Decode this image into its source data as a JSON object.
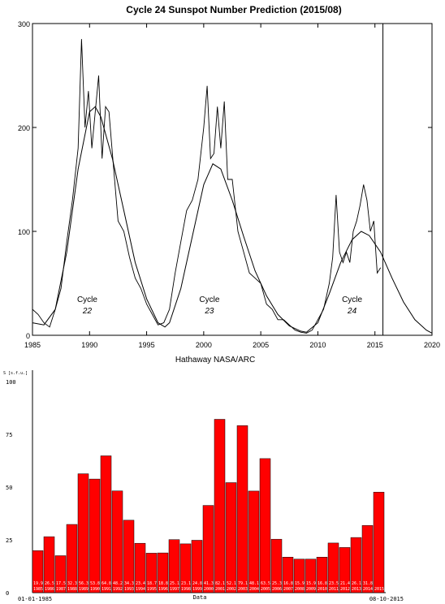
{
  "chart_data": [
    {
      "type": "line",
      "title": "Cycle 24 Sunspot Number Prediction (2015/08)",
      "credit": "Hathaway  NASA/ARC",
      "xlim": [
        1985,
        2020
      ],
      "ylim": [
        0,
        300
      ],
      "x_ticks": [
        "1985",
        "1990",
        "1995",
        "2000",
        "2005",
        "2010",
        "2015",
        "2020"
      ],
      "y_ticks": [
        "0",
        "100",
        "200",
        "300"
      ],
      "marker_year": 2015.7,
      "cycle_labels": [
        {
          "name": "Cycle",
          "number": "22",
          "x": 1989.8
        },
        {
          "name": "Cycle",
          "number": "23",
          "x": 2000.5
        },
        {
          "name": "Cycle",
          "number": "24",
          "x": 2013.0
        }
      ],
      "series": [
        {
          "role": "monthly-observed",
          "x": [
            1985.0,
            1985.5,
            1986.0,
            1986.5,
            1987.0,
            1987.5,
            1988.0,
            1988.5,
            1989.0,
            1989.3,
            1989.6,
            1989.9,
            1990.2,
            1990.5,
            1990.8,
            1991.1,
            1991.4,
            1991.7,
            1992.0,
            1992.5,
            1993.0,
            1993.5,
            1994.0,
            1994.5,
            1995.0,
            1995.5,
            1996.0,
            1996.5,
            1997.0,
            1997.5,
            1998.0,
            1998.5,
            1999.0,
            1999.5,
            2000.0,
            2000.3,
            2000.6,
            2000.9,
            2001.2,
            2001.5,
            2001.8,
            2002.1,
            2002.5,
            2003.0,
            2003.5,
            2004.0,
            2004.5,
            2005.0,
            2005.5,
            2006.0,
            2006.5,
            2007.0,
            2007.5,
            2008.0,
            2008.5,
            2009.0,
            2009.5,
            2010.0,
            2010.5,
            2011.0,
            2011.3,
            2011.6,
            2011.9,
            2012.2,
            2012.5,
            2012.8,
            2013.1,
            2013.4,
            2013.7,
            2014.0,
            2014.3,
            2014.6,
            2014.9,
            2015.2,
            2015.5
          ],
          "y": [
            25,
            20,
            12,
            8,
            25,
            45,
            90,
            130,
            180,
            285,
            200,
            235,
            180,
            215,
            250,
            170,
            220,
            215,
            175,
            110,
            100,
            75,
            55,
            45,
            30,
            20,
            10,
            12,
            25,
            60,
            90,
            120,
            130,
            150,
            200,
            240,
            170,
            175,
            220,
            180,
            225,
            150,
            150,
            100,
            80,
            60,
            55,
            50,
            30,
            25,
            15,
            15,
            10,
            5,
            3,
            2,
            5,
            15,
            25,
            50,
            75,
            135,
            80,
            70,
            80,
            70,
            100,
            110,
            125,
            145,
            130,
            100,
            110,
            60,
            65
          ]
        },
        {
          "role": "smoothed-fit",
          "x": [
            1985.0,
            1986.0,
            1987.0,
            1988.0,
            1989.0,
            1990.0,
            1990.5,
            1991.0,
            1992.0,
            1993.0,
            1994.0,
            1995.0,
            1996.0,
            1996.6,
            1997.0,
            1998.0,
            1999.0,
            2000.0,
            2000.8,
            2001.5,
            2002.5,
            2003.5,
            2004.5,
            2005.5,
            2006.5,
            2007.5,
            2008.5,
            2009.0,
            2010.0,
            2011.0,
            2012.0,
            2013.0,
            2013.8,
            2014.5,
            2015.5,
            2016.5,
            2017.5,
            2018.5,
            2019.5,
            2020.0
          ],
          "y": [
            12,
            10,
            25,
            80,
            160,
            215,
            220,
            210,
            170,
            120,
            70,
            35,
            12,
            8,
            12,
            45,
            95,
            145,
            165,
            160,
            130,
            95,
            62,
            38,
            20,
            9,
            4,
            3,
            12,
            40,
            70,
            92,
            100,
            96,
            80,
            55,
            32,
            15,
            5,
            2
          ]
        }
      ]
    },
    {
      "type": "bar",
      "ylabel": "S [s.f.u.]",
      "xlabel": "Data",
      "ylim": [
        0,
        100
      ],
      "y_ticks": [
        "0",
        "25",
        "50",
        "75",
        "100"
      ],
      "date_start": "01-01-1985",
      "date_end": "08-10-2015",
      "bar_color": "#ff0000",
      "categories": [
        "1985",
        "1986",
        "1987",
        "1988",
        "1989",
        "1990",
        "1991",
        "1992",
        "1993",
        "1994",
        "1995",
        "1996",
        "1997",
        "1998",
        "1999",
        "2000",
        "2001",
        "2002",
        "2003",
        "2004",
        "2005",
        "2006",
        "2007",
        "2008",
        "2009",
        "2010",
        "2011",
        "2012",
        "2013",
        "2014",
        "2015"
      ],
      "values": [
        19.9,
        26.5,
        17.5,
        32.3,
        56.3,
        53.8,
        64.8,
        48.2,
        34.3,
        23.4,
        18.7,
        18.8,
        25.1,
        23.1,
        24.8,
        41.3,
        82.1,
        52.1,
        79.1,
        48.1,
        63.5,
        25.3,
        16.8,
        15.9,
        15.9,
        16.8,
        23.5,
        21.4,
        26.1,
        31.8,
        47.6
      ],
      "value_labels": [
        "19.9",
        "26.5",
        "17.5",
        "32.3",
        "56.3",
        "53.8",
        "64.8",
        "48.2",
        "34.3",
        "23.4",
        "18.7",
        "18.8",
        "25.1",
        "23.1",
        "24.8",
        "41.3",
        "82.1",
        "52.1",
        "79.1",
        "48.1",
        "63.5",
        "25.3",
        "16.8",
        "15.9",
        "15.9",
        "16.8",
        "23.5",
        "21.4",
        "26.1",
        "31.8",
        ""
      ]
    }
  ]
}
